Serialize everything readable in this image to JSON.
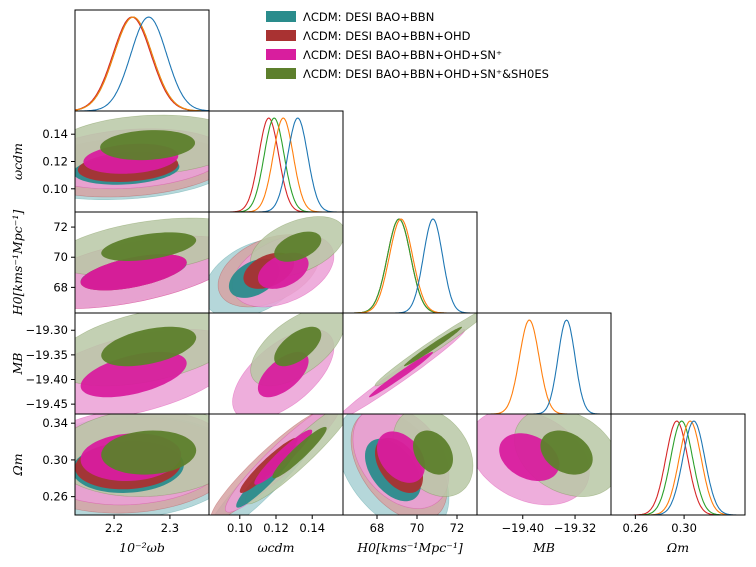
{
  "chart_data": {
    "type": "corner",
    "legend_position": "top-right",
    "legend": [
      {
        "label": "ΛCDM: DESI BAO+BBN",
        "color": "#2a8c8c"
      },
      {
        "label": "ΛCDM: DESI BAO+BBN+OHD",
        "color": "#a93232"
      },
      {
        "label": "ΛCDM: DESI BAO+BBN+OHD+SN⁺",
        "color": "#d81e9e"
      },
      {
        "label": "ΛCDM: DESI BAO+BBN+OHD+SN⁺&SH0ES",
        "color": "#5d7f2c"
      }
    ],
    "parameters": [
      {
        "xlabel": "10⁻²ωb",
        "ylabel": "",
        "range": [
          2.13,
          2.37
        ],
        "ticks": [
          2.2,
          2.3
        ],
        "tick_labels": [
          "2.2",
          "2.3"
        ]
      },
      {
        "xlabel": "ωcdm",
        "ylabel": "ωcdm",
        "range": [
          0.083,
          0.157
        ],
        "ticks": [
          0.1,
          0.12,
          0.14
        ],
        "tick_labels": [
          "0.10",
          "0.12",
          "0.14"
        ],
        "xtick_labels": [
          "0.10",
          "0.12",
          "0.14"
        ]
      },
      {
        "xlabel": "H0[kms⁻¹Mpc⁻¹]",
        "ylabel": "H0[kms⁻¹Mpc⁻¹]",
        "range": [
          66.3,
          73.0
        ],
        "ticks": [
          68,
          70,
          72
        ],
        "tick_labels": [
          "68",
          "70",
          "72"
        ]
      },
      {
        "xlabel": "MB",
        "ylabel": "MB",
        "range": [
          -19.47,
          -19.265
        ],
        "ticks": [
          -19.45,
          -19.4,
          -19.35,
          -19.3
        ],
        "tick_labels": [
          "−19.45",
          "−19.40",
          "−19.35",
          "−19.30"
        ],
        "xticks": [
          -19.4,
          -19.32
        ],
        "xtick_labels": [
          "−19.40",
          "−19.32"
        ]
      },
      {
        "xlabel": "Ωm",
        "ylabel": "Ωm",
        "range": [
          0.24,
          0.35
        ],
        "ticks": [
          0.26,
          0.3,
          0.34
        ],
        "tick_labels": [
          "0.26",
          "0.30",
          "0.34"
        ],
        "xticks": [
          0.26,
          0.3
        ],
        "xtick_labels": [
          "0.26",
          "0.30"
        ]
      }
    ],
    "curves_1d": [
      [
        {
          "color": "#1f77b4",
          "mean": 2.262,
          "sigma": 0.032
        },
        {
          "color": "#ff7f0e",
          "mean": 2.234,
          "sigma": 0.034
        },
        {
          "color": "#2ca02c",
          "mean": 2.234,
          "sigma": 0.034
        },
        {
          "color": "#d62728",
          "mean": 2.232,
          "sigma": 0.034
        }
      ],
      [
        {
          "color": "#1f77b4",
          "mean": 0.132,
          "sigma": 0.0055
        },
        {
          "color": "#ff7f0e",
          "mean": 0.124,
          "sigma": 0.0055
        },
        {
          "color": "#2ca02c",
          "mean": 0.119,
          "sigma": 0.0055
        },
        {
          "color": "#d62728",
          "mean": 0.116,
          "sigma": 0.0055
        }
      ],
      [
        {
          "color": "#1f77b4",
          "mean": 70.8,
          "sigma": 0.48
        },
        {
          "color": "#ff7f0e",
          "mean": 69.2,
          "sigma": 0.58
        },
        {
          "color": "#2ca02c",
          "mean": 69.1,
          "sigma": 0.58
        },
        {
          "color": "#d62728",
          "mean": 69.1,
          "sigma": 0.58
        }
      ],
      [
        {
          "color": "#1f77b4",
          "mean": -19.333,
          "sigma": 0.013
        },
        {
          "color": "#ff7f0e",
          "mean": -19.39,
          "sigma": 0.015
        }
      ],
      [
        {
          "color": "#1f77b4",
          "mean": 0.308,
          "sigma": 0.009
        },
        {
          "color": "#ff7f0e",
          "mean": 0.305,
          "sigma": 0.009
        },
        {
          "color": "#2ca02c",
          "mean": 0.298,
          "sigma": 0.009
        },
        {
          "color": "#d62728",
          "mean": 0.294,
          "sigma": 0.009
        }
      ]
    ],
    "contours_2d": [
      {
        "row": 1,
        "col": 0,
        "ellipses": [
          {
            "dataset": 0,
            "center": [
              2.222,
              0.114
            ],
            "semi_axes": [
              0.095,
              0.011
            ],
            "rho": 0.2
          },
          {
            "dataset": 1,
            "center": [
              2.225,
              0.116
            ],
            "semi_axes": [
              0.09,
              0.011
            ],
            "rho": 0.2
          },
          {
            "dataset": 2,
            "center": [
              2.23,
              0.122
            ],
            "semi_axes": [
              0.085,
              0.011
            ],
            "rho": 0.2
          },
          {
            "dataset": 3,
            "center": [
              2.26,
              0.132
            ],
            "semi_axes": [
              0.085,
              0.011
            ],
            "rho": 0.15
          }
        ]
      },
      {
        "row": 2,
        "col": 0,
        "ellipses": [
          {
            "dataset": 0,
            "center": [
              2.235,
              69.0
            ],
            "semi_axes": [
              0.095,
              1.1
            ],
            "rho": 0.55
          },
          {
            "dataset": 1,
            "center": [
              2.235,
              69.0
            ],
            "semi_axes": [
              0.095,
              1.2
            ],
            "rho": 0.55
          },
          {
            "dataset": 2,
            "center": [
              2.235,
              69.0
            ],
            "semi_axes": [
              0.095,
              1.2
            ],
            "rho": 0.55
          },
          {
            "dataset": 3,
            "center": [
              2.262,
              70.7
            ],
            "semi_axes": [
              0.085,
              0.95
            ],
            "rho": 0.45
          }
        ]
      },
      {
        "row": 2,
        "col": 1,
        "ellipses": [
          {
            "dataset": 0,
            "center": [
              0.108,
              68.6
            ],
            "semi_axes": [
              0.014,
              1.3
            ],
            "rho": 0.4
          },
          {
            "dataset": 1,
            "center": [
              0.116,
              69.1
            ],
            "semi_axes": [
              0.014,
              1.2
            ],
            "rho": 0.4
          },
          {
            "dataset": 2,
            "center": [
              0.124,
              69.1
            ],
            "semi_axes": [
              0.014,
              1.2
            ],
            "rho": 0.4
          },
          {
            "dataset": 3,
            "center": [
              0.132,
              70.7
            ],
            "semi_axes": [
              0.013,
              1.0
            ],
            "rho": 0.45
          }
        ]
      },
      {
        "row": 3,
        "col": 0,
        "ellipses": [
          {
            "dataset": 2,
            "center": [
              2.235,
              -19.39
            ],
            "semi_axes": [
              0.095,
              0.046
            ],
            "rho": 0.5
          },
          {
            "dataset": 3,
            "center": [
              2.262,
              -19.333
            ],
            "semi_axes": [
              0.085,
              0.04
            ],
            "rho": 0.45
          }
        ]
      },
      {
        "row": 3,
        "col": 1,
        "ellipses": [
          {
            "dataset": 2,
            "center": [
              0.124,
              -19.39
            ],
            "semi_axes": [
              0.014,
              0.046
            ],
            "rho": 0.6
          },
          {
            "dataset": 3,
            "center": [
              0.132,
              -19.333
            ],
            "semi_axes": [
              0.013,
              0.04
            ],
            "rho": 0.6
          }
        ]
      },
      {
        "row": 3,
        "col": 2,
        "ellipses": [
          {
            "dataset": 2,
            "center": [
              69.2,
              -19.39
            ],
            "semi_axes": [
              1.6,
              0.046
            ],
            "rho": 0.985
          },
          {
            "dataset": 3,
            "center": [
              70.8,
              -19.333
            ],
            "semi_axes": [
              1.45,
              0.04
            ],
            "rho": 0.985
          }
        ]
      },
      {
        "row": 4,
        "col": 0,
        "ellipses": [
          {
            "dataset": 0,
            "center": [
              2.225,
              0.292
            ],
            "semi_axes": [
              0.1,
              0.028
            ],
            "rho": 0.1
          },
          {
            "dataset": 1,
            "center": [
              2.225,
              0.294
            ],
            "semi_axes": [
              0.095,
              0.026
            ],
            "rho": 0.1
          },
          {
            "dataset": 2,
            "center": [
              2.23,
              0.303
            ],
            "semi_axes": [
              0.09,
              0.026
            ],
            "rho": 0.1
          },
          {
            "dataset": 3,
            "center": [
              2.262,
              0.308
            ],
            "semi_axes": [
              0.085,
              0.024
            ],
            "rho": 0.1
          }
        ]
      },
      {
        "row": 4,
        "col": 1,
        "ellipses": [
          {
            "dataset": 0,
            "center": [
              0.115,
              0.282
            ],
            "semi_axes": [
              0.017,
              0.034
            ],
            "rho": 0.94
          },
          {
            "dataset": 1,
            "center": [
              0.116,
              0.294
            ],
            "semi_axes": [
              0.016,
              0.03
            ],
            "rho": 0.94
          },
          {
            "dataset": 2,
            "center": [
              0.124,
              0.303
            ],
            "semi_axes": [
              0.016,
              0.03
            ],
            "rho": 0.94
          },
          {
            "dataset": 3,
            "center": [
              0.133,
              0.308
            ],
            "semi_axes": [
              0.015,
              0.028
            ],
            "rho": 0.94
          }
        ]
      },
      {
        "row": 4,
        "col": 2,
        "ellipses": [
          {
            "dataset": 0,
            "center": [
              68.8,
              0.289
            ],
            "semi_axes": [
              1.4,
              0.034
            ],
            "rho": -0.45
          },
          {
            "dataset": 1,
            "center": [
              69.1,
              0.294
            ],
            "semi_axes": [
              1.2,
              0.03
            ],
            "rho": -0.45
          },
          {
            "dataset": 2,
            "center": [
              69.2,
              0.303
            ],
            "semi_axes": [
              1.2,
              0.028
            ],
            "rho": -0.35
          },
          {
            "dataset": 3,
            "center": [
              70.8,
              0.308
            ],
            "semi_axes": [
              1.0,
              0.024
            ],
            "rho": -0.3
          }
        ]
      },
      {
        "row": 4,
        "col": 3,
        "ellipses": [
          {
            "dataset": 2,
            "center": [
              -19.39,
              0.303
            ],
            "semi_axes": [
              0.046,
              0.026
            ],
            "rho": -0.3
          },
          {
            "dataset": 3,
            "center": [
              -19.333,
              0.308
            ],
            "semi_axes": [
              0.04,
              0.024
            ],
            "rho": -0.3
          }
        ]
      }
    ]
  }
}
